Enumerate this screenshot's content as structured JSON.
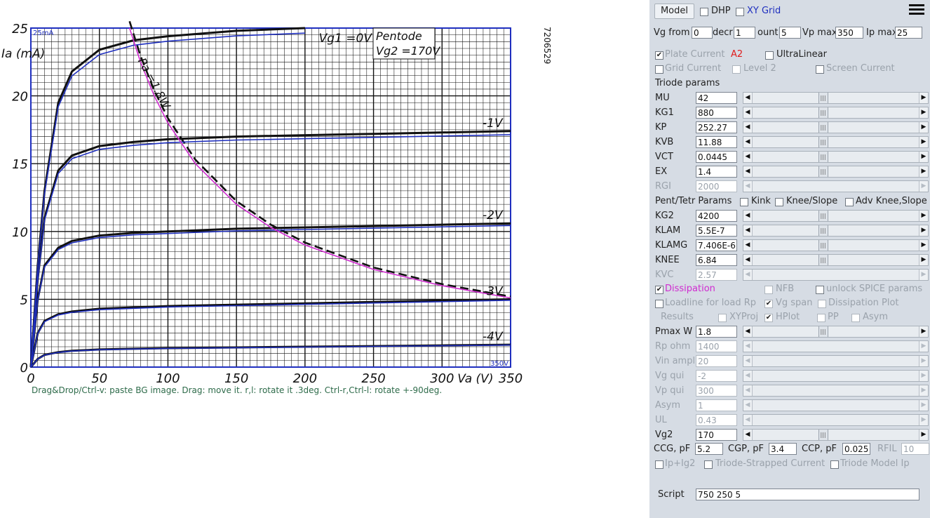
{
  "chart_data": {
    "type": "line",
    "title": "Pentode",
    "subtitle": "Vg2 =170V",
    "xlabel": "Va (V)",
    "ylabel": "Ia (mA)",
    "xlim": [
      0,
      350
    ],
    "ylim": [
      0,
      25
    ],
    "x_ticks": [
      "0",
      "50",
      "100",
      "150",
      "200",
      "250",
      "300",
      "350"
    ],
    "y_ticks": [
      "0",
      "5",
      "10",
      "15",
      "20",
      "25"
    ],
    "corner_top_label": "25mA",
    "corner_bottom_label": "350V",
    "side_code": "7206529",
    "grid": true,
    "series": [
      {
        "name": "Vg1 =0V",
        "x": [
          0,
          5,
          10,
          20,
          30,
          50,
          75,
          100,
          150,
          200
        ],
        "y": [
          0,
          7.5,
          13,
          19.5,
          21.8,
          23.4,
          24.1,
          24.4,
          24.8,
          25
        ]
      },
      {
        "name": "-1V",
        "x": [
          0,
          5,
          10,
          20,
          30,
          50,
          75,
          100,
          150,
          200,
          250,
          300,
          350
        ],
        "y": [
          0,
          6.5,
          11,
          14.5,
          15.6,
          16.3,
          16.6,
          16.8,
          17.0,
          17.1,
          17.2,
          17.3,
          17.4
        ]
      },
      {
        "name": "-2V",
        "x": [
          0,
          5,
          10,
          20,
          30,
          50,
          75,
          100,
          150,
          200,
          250,
          300,
          350
        ],
        "y": [
          0,
          5,
          7.5,
          8.8,
          9.3,
          9.7,
          9.9,
          10.0,
          10.2,
          10.3,
          10.4,
          10.5,
          10.6
        ]
      },
      {
        "name": "-3V",
        "x": [
          0,
          5,
          10,
          20,
          30,
          50,
          75,
          100,
          150,
          200,
          250,
          300,
          350
        ],
        "y": [
          0,
          2.5,
          3.4,
          3.9,
          4.1,
          4.3,
          4.4,
          4.5,
          4.6,
          4.7,
          4.8,
          4.9,
          5.0
        ]
      },
      {
        "name": "-4V",
        "x": [
          0,
          5,
          10,
          20,
          30,
          50,
          75,
          100,
          150,
          200,
          250,
          300,
          350
        ],
        "y": [
          0,
          0.6,
          0.9,
          1.1,
          1.2,
          1.3,
          1.35,
          1.4,
          1.45,
          1.5,
          1.55,
          1.6,
          1.65
        ]
      }
    ],
    "dissipation_curve": {
      "name": "Pa =1.8W",
      "x": [
        72,
        80,
        90,
        100,
        120,
        150,
        175,
        200,
        250,
        300,
        350
      ],
      "y": [
        25,
        22.5,
        20,
        18,
        15,
        12,
        10.3,
        9,
        7.2,
        6,
        5.1
      ]
    },
    "model_curves_color": "#1f2fbf",
    "dissipation_color": "#d02bd0"
  },
  "plot_hint": "Drag&Drop/Ctrl-v: paste BG image. Drag: move it. r,l: rotate it .3deg. Ctrl-r,Ctrl-l: rotate +-90deg.",
  "panel": {
    "model_button": "Model",
    "dhp_label": "DHP",
    "xygrid_label": "XY Grid",
    "vg_from_label": "Vg from",
    "vg_from_value": "0",
    "decr_label": "decr",
    "decr_value": "1",
    "count_label": "ount",
    "count_value": "5",
    "vpmax_label": "Vp max",
    "vpmax_value": "350",
    "ipmax_label": "Ip max",
    "ipmax_value": "25",
    "plate_current_label": "Plate Current",
    "a2_label": "A2",
    "ultralinear_label": "UltraLinear",
    "grid_current_label": "Grid Current",
    "level2_label": "Level 2",
    "screen_current_label": "Screen Current",
    "triode_params_heading": "Triode params",
    "triode_params": [
      {
        "label": "MU",
        "value": "42",
        "pos": 0.42
      },
      {
        "label": "KG1",
        "value": "880",
        "pos": 0.42
      },
      {
        "label": "KP",
        "value": "252.27",
        "pos": 0.42
      },
      {
        "label": "KVB",
        "value": "11.88",
        "pos": 0.42
      },
      {
        "label": "VCT",
        "value": "0.0445",
        "pos": 0.42
      },
      {
        "label": "EX",
        "value": "1.4",
        "pos": 0.42
      }
    ],
    "rgi": {
      "label": "RGI",
      "value": "2000"
    },
    "pent_heading": "Pent/Tetr Params",
    "kink_label": "Kink",
    "knee_slope_label": "Knee/Slope",
    "adv_knee_label": "Adv Knee,Slope",
    "pent_params": [
      {
        "label": "KG2",
        "value": "4200",
        "pos": 0.42
      },
      {
        "label": "KLAM",
        "value": "5.5E-7",
        "pos": 0.42
      },
      {
        "label": "KLAMG",
        "value": "7.406E-6",
        "pos": 0.42
      },
      {
        "label": "KNEE",
        "value": "6.84",
        "pos": 0.42
      }
    ],
    "kvc": {
      "label": "KVC",
      "value": "2.57"
    },
    "dissipation_label": "Dissipation",
    "nfb_label": "NFB",
    "unlock_spice_label": "unlock SPICE params",
    "loadline_label": "Loadline for load Rp",
    "vg_span_label": "Vg span",
    "dissipation_plot_label": "Dissipation Plot",
    "results_label": "Results",
    "xyproj_label": "XYProj",
    "hplot_label": "HPlot",
    "pp_label": "PP",
    "asym_check_label": "Asym",
    "pmax": {
      "label": "Pmax W",
      "value": "1.8",
      "pos": 0.42
    },
    "disabled_params": [
      {
        "label": "Rp ohm",
        "value": "1400"
      },
      {
        "label": "Vin ampl",
        "value": "20"
      },
      {
        "label": "Vg qui",
        "value": "-2"
      },
      {
        "label": "Vp qui",
        "value": "300"
      },
      {
        "label": "Asym",
        "value": "1"
      },
      {
        "label": "UL",
        "value": "0.43"
      }
    ],
    "vg2": {
      "label": "Vg2",
      "value": "170",
      "pos": 0.42
    },
    "ccg_label": "CCG, pF",
    "ccg_value": "5.2",
    "cgp_label": "CGP, pF",
    "cgp_value": "3.4",
    "ccp_label": "CCP, pF",
    "ccp_value": "0.025",
    "rfil_label": "RFIL",
    "rfil_value": "10",
    "ip_ig2_label": "Ip+Ig2",
    "triode_strapped_label": "Triode-Strapped Current",
    "triode_model_ip_label": "Triode Model Ip",
    "script_label": "Script",
    "script_value": "750 250 5",
    "check_mark": "✔"
  }
}
